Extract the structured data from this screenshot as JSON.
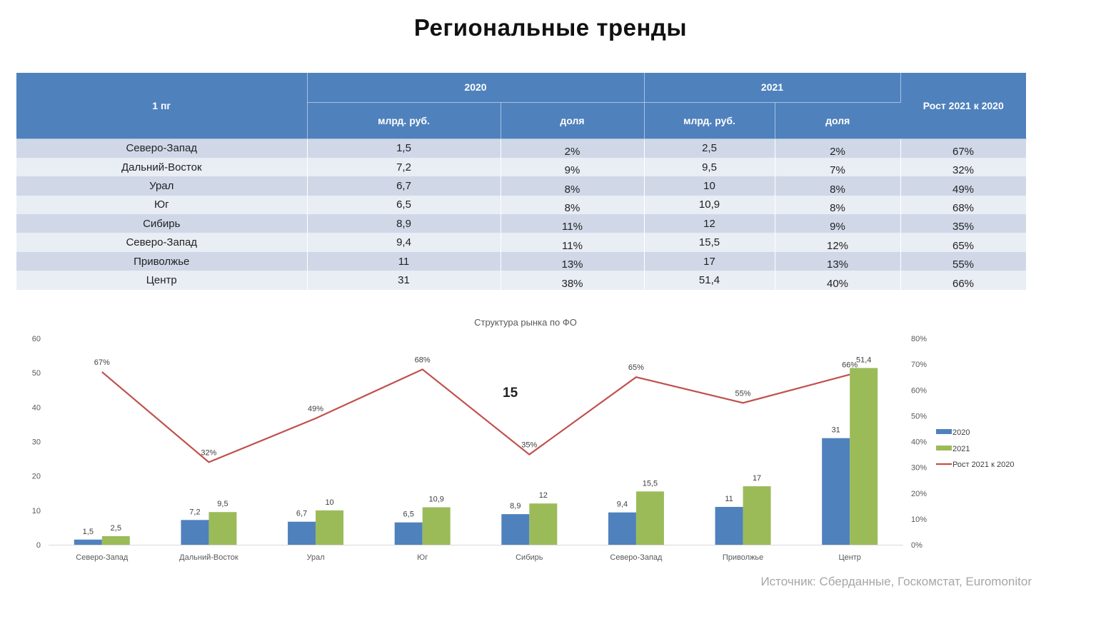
{
  "title": "Региональные тренды",
  "table": {
    "head_col": "1 пг",
    "year1": "2020",
    "year2": "2021",
    "growth_header": "Рост 2021 к 2020",
    "sub_value": "млрд. руб.",
    "sub_share": "доля",
    "rows": [
      {
        "region": "Северо-Запад",
        "v2020": "1,5",
        "s2020": "2%",
        "v2021": "2,5",
        "s2021": "2%",
        "growth": "67%"
      },
      {
        "region": "Дальний-Восток",
        "v2020": "7,2",
        "s2020": "9%",
        "v2021": "9,5",
        "s2021": "7%",
        "growth": "32%"
      },
      {
        "region": "Урал",
        "v2020": "6,7",
        "s2020": "8%",
        "v2021": "10",
        "s2021": "8%",
        "growth": "49%"
      },
      {
        "region": "Юг",
        "v2020": "6,5",
        "s2020": "8%",
        "v2021": "10,9",
        "s2021": "8%",
        "growth": "68%"
      },
      {
        "region": "Сибирь",
        "v2020": "8,9",
        "s2020": "11%",
        "v2021": "12",
        "s2021": "9%",
        "growth": "35%"
      },
      {
        "region": "Северо-Запад",
        "v2020": "9,4",
        "s2020": "11%",
        "v2021": "15,5",
        "s2021": "12%",
        "growth": "65%"
      },
      {
        "region": "Приволжье",
        "v2020": "11",
        "s2020": "13%",
        "v2021": "17",
        "s2021": "13%",
        "growth": "55%"
      },
      {
        "region": "Центр",
        "v2020": "31",
        "s2020": "38%",
        "v2021": "51,4",
        "s2021": "40%",
        "growth": "66%"
      }
    ]
  },
  "annotation": "15",
  "source": "Источник: Сберданные, Госкомстат, Euromonitor",
  "chart_data": {
    "type": "bar",
    "title": "Структура рынка по ФО",
    "categories": [
      "Северо-Запад",
      "Дальний-Восток",
      "Урал",
      "Юг",
      "Сибирь",
      "Северо-Запад",
      "Приволжье",
      "Центр"
    ],
    "series": [
      {
        "name": "2020",
        "type": "bar",
        "axis": "left",
        "color": "#4f81bd",
        "values": [
          1.5,
          7.2,
          6.7,
          6.5,
          8.9,
          9.4,
          11,
          31
        ],
        "labels": [
          "1,5",
          "7,2",
          "6,7",
          "6,5",
          "8,9",
          "9,4",
          "11",
          "31"
        ]
      },
      {
        "name": "2021",
        "type": "bar",
        "axis": "left",
        "color": "#9bbb59",
        "values": [
          2.5,
          9.5,
          10,
          10.9,
          12,
          15.5,
          17,
          51.4
        ],
        "labels": [
          "2,5",
          "9,5",
          "10",
          "10,9",
          "12",
          "15,5",
          "17",
          "51,4"
        ]
      },
      {
        "name": "Рост 2021 к 2020",
        "type": "line",
        "axis": "right",
        "color": "#c0504d",
        "values": [
          0.67,
          0.32,
          0.49,
          0.68,
          0.35,
          0.65,
          0.55,
          0.66
        ],
        "labels": [
          "67%",
          "32%",
          "49%",
          "68%",
          "35%",
          "65%",
          "55%",
          "66%"
        ]
      }
    ],
    "ylim": [
      0,
      60
    ],
    "yticks": [
      "0",
      "10",
      "20",
      "30",
      "40",
      "50",
      "60"
    ],
    "y2lim": [
      0,
      0.8
    ],
    "y2ticks": [
      "0%",
      "10%",
      "20%",
      "30%",
      "40%",
      "50%",
      "60%",
      "70%",
      "80%"
    ],
    "legend": "right",
    "grid": false
  }
}
